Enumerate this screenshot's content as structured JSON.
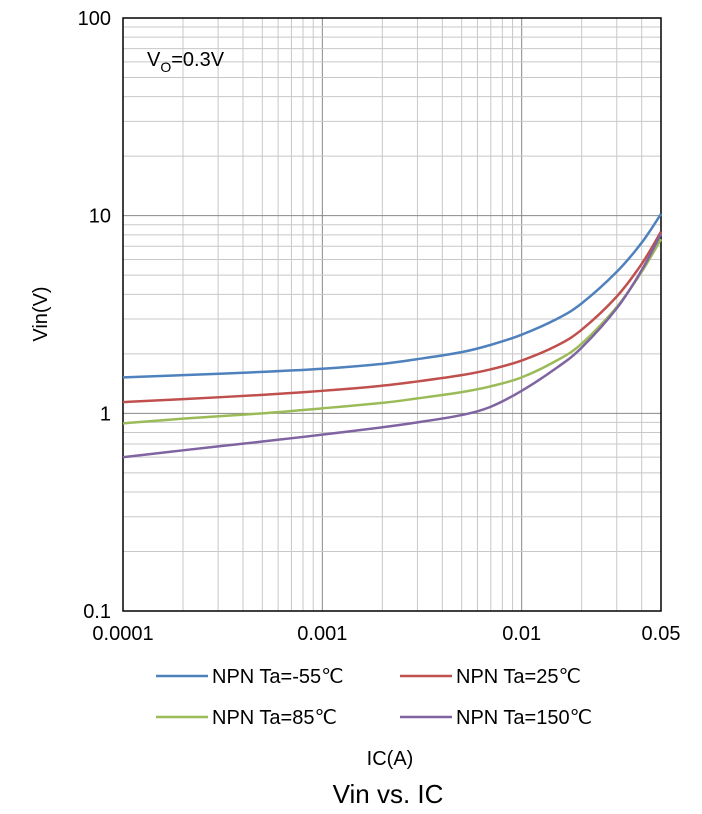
{
  "chart_data": {
    "type": "line",
    "title": "Vin vs. IC",
    "xlabel": "IC(A)",
    "ylabel": "Vin(V)",
    "x_scale": "log",
    "y_scale": "log",
    "xlim": [
      0.0001,
      0.05
    ],
    "ylim": [
      0.1,
      100
    ],
    "x_tick_labels": [
      "0.0001",
      "0.001",
      "0.01",
      "0.05"
    ],
    "y_tick_labels": [
      "0.1",
      "1",
      "10",
      "100"
    ],
    "grid": true,
    "legend_position": "bottom",
    "annotation": {
      "main": "V",
      "sub": "O",
      "tail": "=0.3V"
    },
    "x": [
      0.0001,
      0.0002,
      0.0005,
      0.001,
      0.002,
      0.003,
      0.005,
      0.007,
      0.01,
      0.015,
      0.02,
      0.03,
      0.04,
      0.05
    ],
    "series": [
      {
        "name": "NPN Ta=-55℃",
        "color": "#4f81bd",
        "values": [
          1.52,
          1.56,
          1.62,
          1.68,
          1.78,
          1.88,
          2.04,
          2.22,
          2.5,
          3.0,
          3.6,
          5.2,
          7.3,
          10.2
        ]
      },
      {
        "name": "NPN Ta=25℃",
        "color": "#c0504d",
        "values": [
          1.14,
          1.18,
          1.24,
          1.3,
          1.38,
          1.45,
          1.56,
          1.67,
          1.85,
          2.2,
          2.65,
          3.9,
          5.7,
          8.3
        ]
      },
      {
        "name": "NPN Ta=85℃",
        "color": "#9bbb59",
        "values": [
          0.89,
          0.94,
          1.0,
          1.06,
          1.13,
          1.19,
          1.28,
          1.37,
          1.52,
          1.85,
          2.25,
          3.45,
          5.2,
          7.6
        ]
      },
      {
        "name": "NPN Ta=150℃",
        "color": "#8064a2",
        "values": [
          0.6,
          0.65,
          0.72,
          0.78,
          0.85,
          0.9,
          0.98,
          1.08,
          1.3,
          1.7,
          2.15,
          3.4,
          5.3,
          8.1
        ]
      }
    ]
  }
}
